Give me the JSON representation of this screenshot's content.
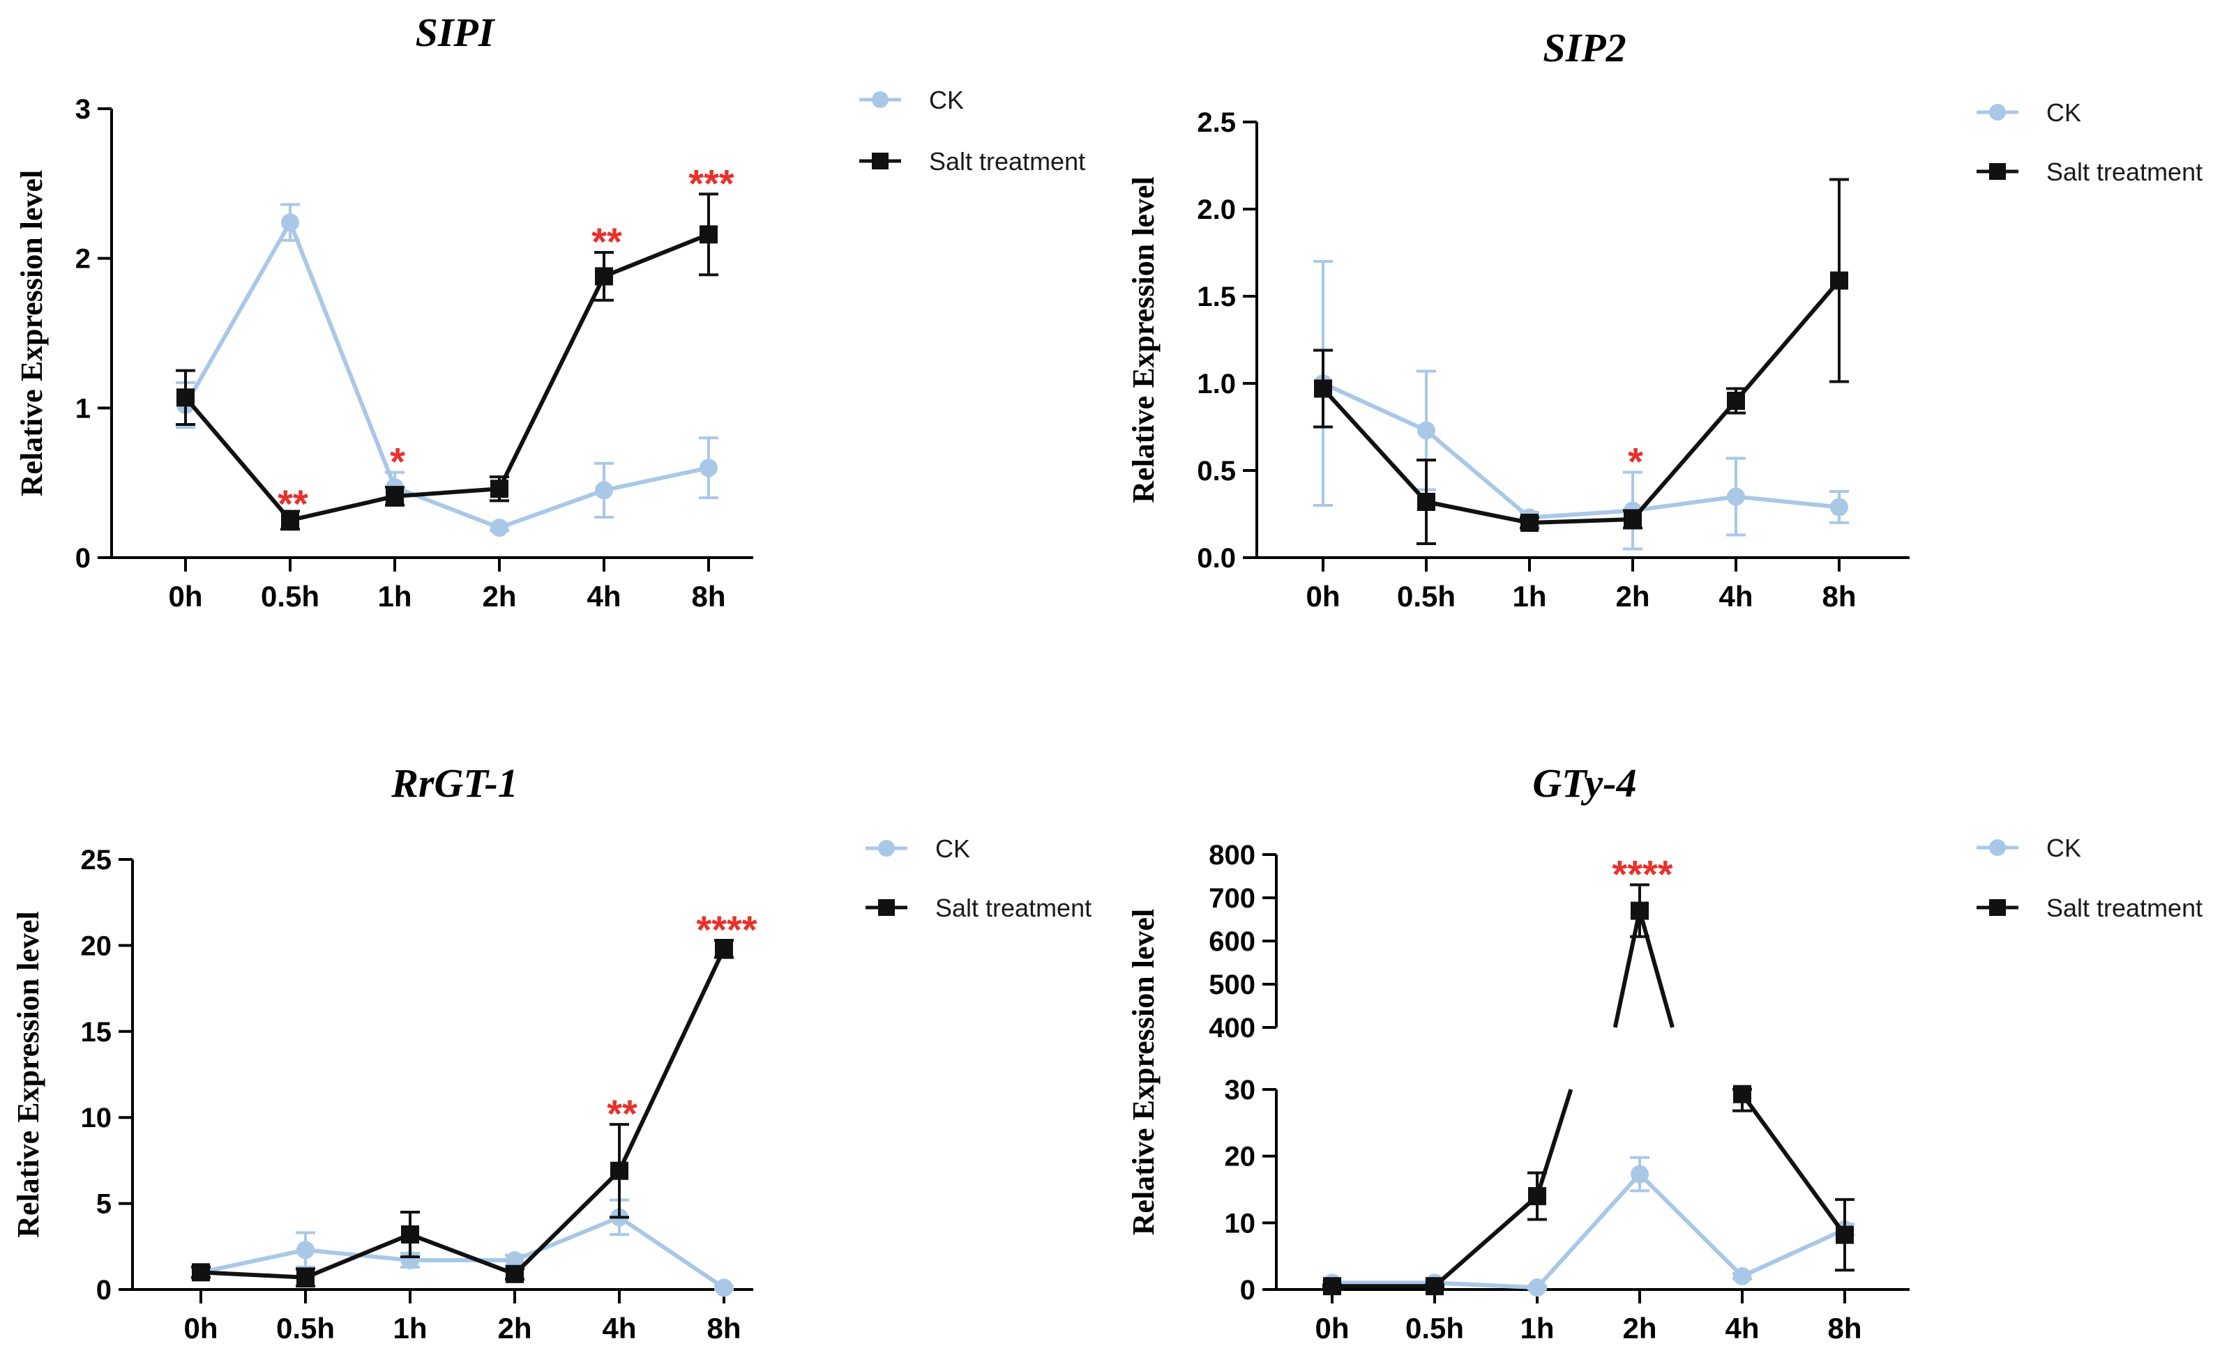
{
  "colors": {
    "ck": "#a9c8e8",
    "salt": "#111111",
    "sig": "#e8312c",
    "axis": "#000000"
  },
  "chart_data": [
    {
      "type": "line",
      "title": "SIPI",
      "ylabel": "Relative Expression level",
      "categories": [
        "0h",
        "0.5h",
        "1h",
        "2h",
        "4h",
        "8h"
      ],
      "ylim": [
        0,
        3
      ],
      "yticks": [
        0,
        1,
        2,
        3
      ],
      "legend": [
        "CK",
        "Salt treatment"
      ],
      "legend_position": "top-right",
      "series": [
        {
          "name": "CK",
          "values": [
            1.02,
            2.24,
            0.47,
            0.2,
            0.45,
            0.6
          ],
          "err": [
            0.15,
            0.12,
            0.1,
            0.02,
            0.18,
            0.2
          ]
        },
        {
          "name": "Salt treatment",
          "values": [
            1.07,
            0.25,
            0.41,
            0.46,
            1.88,
            2.16
          ],
          "err": [
            0.18,
            0.06,
            0.06,
            0.08,
            0.16,
            0.27
          ]
        }
      ],
      "annotations": [
        {
          "index": 1,
          "text": "**"
        },
        {
          "index": 2,
          "text": "*"
        },
        {
          "index": 4,
          "text": "**"
        },
        {
          "index": 5,
          "text": "***"
        }
      ]
    },
    {
      "type": "line",
      "title": "SIP2",
      "ylabel": "Relative Expression level",
      "categories": [
        "0h",
        "0.5h",
        "1h",
        "2h",
        "4h",
        "8h"
      ],
      "ylim": [
        0,
        2.5
      ],
      "yticks": [
        0.0,
        0.5,
        1.0,
        1.5,
        2.0,
        2.5
      ],
      "legend": [
        "CK",
        "Salt treatment"
      ],
      "legend_position": "top-right",
      "series": [
        {
          "name": "CK",
          "values": [
            1.0,
            0.73,
            0.23,
            0.27,
            0.35,
            0.29
          ],
          "err": [
            0.7,
            0.34,
            0.03,
            0.22,
            0.22,
            0.09
          ]
        },
        {
          "name": "Salt treatment",
          "values": [
            0.97,
            0.32,
            0.2,
            0.22,
            0.9,
            1.59
          ],
          "err": [
            0.22,
            0.24,
            0.03,
            0.05,
            0.07,
            0.58
          ]
        }
      ],
      "annotations": [
        {
          "index": 3,
          "text": "*"
        }
      ]
    },
    {
      "type": "line",
      "title": "RrGT-1",
      "ylabel": "Relative Expression level",
      "categories": [
        "0h",
        "0.5h",
        "1h",
        "2h",
        "4h",
        "8h"
      ],
      "ylim": [
        0,
        25
      ],
      "yticks": [
        0,
        5,
        10,
        15,
        20,
        25
      ],
      "legend": [
        "CK",
        "Salt treatment"
      ],
      "legend_position": "top-right",
      "series": [
        {
          "name": "CK",
          "values": [
            1.0,
            2.3,
            1.7,
            1.7,
            4.2,
            0.1
          ],
          "err": [
            0.3,
            1.0,
            0.4,
            0.3,
            1.0,
            0.1
          ]
        },
        {
          "name": "Salt treatment",
          "values": [
            1.0,
            0.7,
            3.2,
            0.9,
            6.9,
            19.8
          ],
          "err": [
            0.3,
            0.5,
            1.3,
            0.3,
            2.7,
            0.5
          ]
        }
      ],
      "annotations": [
        {
          "index": 4,
          "text": "**"
        },
        {
          "index": 5,
          "text": "****"
        }
      ]
    },
    {
      "type": "line",
      "title": "GTy-4",
      "ylabel": "Relative Expression level",
      "categories": [
        "0h",
        "0.5h",
        "1h",
        "2h",
        "4h",
        "8h"
      ],
      "axis_break": [
        30,
        400
      ],
      "ylim_lower": [
        0,
        30
      ],
      "ylim_upper": [
        400,
        800
      ],
      "yticks_lower": [
        0,
        10,
        20,
        30
      ],
      "yticks_upper": [
        400,
        500,
        600,
        700,
        800
      ],
      "legend": [
        "CK",
        "Salt treatment"
      ],
      "legend_position": "top-right",
      "series": [
        {
          "name": "CK",
          "values": [
            1.0,
            1.0,
            0.3,
            17.3,
            2.0,
            9.0
          ],
          "err": [
            0.3,
            0.3,
            0.2,
            2.5,
            0.4,
            0.8
          ]
        },
        {
          "name": "Salt treatment",
          "values": [
            0.5,
            0.5,
            14.0,
            670.0,
            29.3,
            8.2
          ],
          "err": [
            0.2,
            0.2,
            3.5,
            60.0,
            2.5,
            5.3
          ]
        }
      ],
      "annotations": [
        {
          "index": 3,
          "text": "****"
        }
      ]
    }
  ]
}
